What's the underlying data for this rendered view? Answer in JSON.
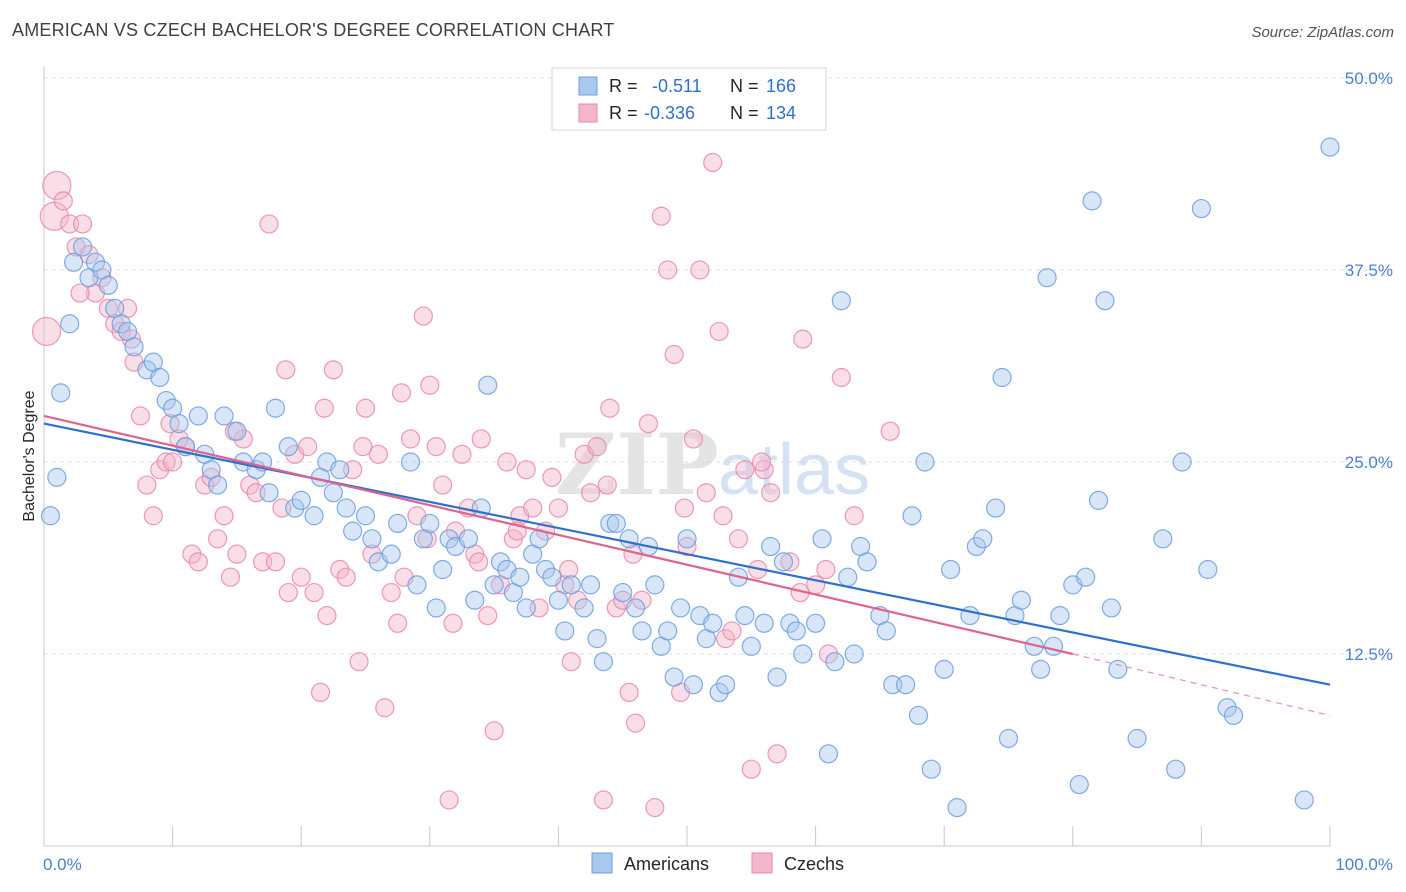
{
  "title": "AMERICAN VS CZECH BACHELOR'S DEGREE CORRELATION CHART",
  "source": "Source: ZipAtlas.com",
  "watermark": {
    "zip": "ZIP",
    "atlas": "atlas"
  },
  "colors": {
    "blue_fill": "#a9c8ee",
    "blue_stroke": "#6a9ee0",
    "blue_line": "#2f6fd0",
    "pink_fill": "#f4b6c9",
    "pink_stroke": "#e888a6",
    "pink_line": "#e0628e",
    "grid": "#dcdcdc",
    "tick_text": "#4a7fd4",
    "axis_text": "#27272a"
  },
  "legend": [
    {
      "r_label": "R =",
      "r_value": "-0.511",
      "n_label": "N =",
      "n_value": "166",
      "color": "blue"
    },
    {
      "r_label": "R =",
      "r_value": "-0.336",
      "n_label": "N =",
      "n_value": "134",
      "color": "pink"
    }
  ],
  "bottom_legend": [
    "Americans",
    "Czechs"
  ],
  "chart_data": {
    "type": "scatter",
    "title": "AMERICAN VS CZECH BACHELOR'S DEGREE CORRELATION CHART",
    "xlabel": "",
    "ylabel": "Bachelor's Degree",
    "xlim": [
      0,
      100
    ],
    "ylim": [
      0,
      50
    ],
    "x_tick_labels": [
      "0.0%",
      "100.0%"
    ],
    "y_ticks": [
      12.5,
      25.0,
      37.5,
      50.0
    ],
    "y_tick_labels": [
      "12.5%",
      "25.0%",
      "37.5%",
      "50.0%"
    ],
    "grid": true,
    "legend_position": "top-center",
    "series": [
      {
        "name": "Americans",
        "r": -0.511,
        "n": 166,
        "trend": {
          "x": [
            0,
            100
          ],
          "y": [
            27.5,
            10.5
          ]
        },
        "points": [
          [
            0.5,
            21.5
          ],
          [
            1.0,
            24.0
          ],
          [
            1.3,
            29.5
          ],
          [
            2.0,
            34.0
          ],
          [
            2.3,
            38.0
          ],
          [
            3.0,
            39.0
          ],
          [
            3.5,
            37.0
          ],
          [
            4.0,
            38.0
          ],
          [
            4.5,
            37.5
          ],
          [
            5.0,
            36.5
          ],
          [
            5.5,
            35.0
          ],
          [
            6.0,
            34.0
          ],
          [
            6.5,
            33.5
          ],
          [
            7.0,
            32.5
          ],
          [
            8.0,
            31.0
          ],
          [
            8.5,
            31.5
          ],
          [
            9.0,
            30.5
          ],
          [
            9.5,
            29.0
          ],
          [
            10.0,
            28.5
          ],
          [
            10.5,
            27.5
          ],
          [
            11.0,
            26.0
          ],
          [
            12.0,
            28.0
          ],
          [
            12.5,
            25.5
          ],
          [
            13.0,
            24.5
          ],
          [
            13.5,
            23.5
          ],
          [
            14.0,
            28.0
          ],
          [
            15.0,
            27.0
          ],
          [
            15.5,
            25.0
          ],
          [
            16.5,
            24.5
          ],
          [
            17.0,
            25.0
          ],
          [
            17.5,
            23.0
          ],
          [
            18.0,
            28.5
          ],
          [
            19.0,
            26.0
          ],
          [
            19.5,
            22.0
          ],
          [
            20.0,
            22.5
          ],
          [
            21.0,
            21.5
          ],
          [
            21.5,
            24.0
          ],
          [
            22.0,
            25.0
          ],
          [
            22.5,
            23.0
          ],
          [
            23.0,
            24.5
          ],
          [
            23.5,
            22.0
          ],
          [
            24.0,
            20.5
          ],
          [
            25.0,
            21.5
          ],
          [
            25.5,
            20.0
          ],
          [
            26.0,
            18.5
          ],
          [
            27.0,
            19.0
          ],
          [
            27.5,
            21.0
          ],
          [
            28.5,
            25.0
          ],
          [
            29.0,
            17.0
          ],
          [
            29.5,
            20.0
          ],
          [
            30.0,
            21.0
          ],
          [
            30.5,
            15.5
          ],
          [
            31.0,
            18.0
          ],
          [
            31.5,
            20.0
          ],
          [
            32.0,
            19.5
          ],
          [
            33.0,
            20.0
          ],
          [
            33.5,
            16.0
          ],
          [
            34.0,
            22.0
          ],
          [
            34.5,
            30.0
          ],
          [
            35.0,
            17.0
          ],
          [
            35.5,
            18.5
          ],
          [
            36.0,
            18.0
          ],
          [
            36.5,
            16.5
          ],
          [
            37.0,
            17.5
          ],
          [
            37.5,
            15.5
          ],
          [
            38.0,
            19.0
          ],
          [
            38.5,
            20.0
          ],
          [
            39.0,
            18.0
          ],
          [
            39.5,
            17.5
          ],
          [
            40.0,
            16.0
          ],
          [
            40.5,
            14.0
          ],
          [
            41.0,
            17.0
          ],
          [
            42.0,
            15.5
          ],
          [
            42.5,
            17.0
          ],
          [
            43.0,
            13.5
          ],
          [
            43.5,
            12.0
          ],
          [
            44.0,
            21.0
          ],
          [
            44.5,
            21.0
          ],
          [
            45.0,
            16.5
          ],
          [
            45.5,
            20.0
          ],
          [
            46.0,
            15.5
          ],
          [
            46.5,
            14.0
          ],
          [
            47.0,
            19.5
          ],
          [
            47.5,
            17.0
          ],
          [
            48.0,
            13.0
          ],
          [
            48.5,
            14.0
          ],
          [
            49.0,
            11.0
          ],
          [
            49.5,
            15.5
          ],
          [
            50.0,
            20.0
          ],
          [
            50.5,
            10.5
          ],
          [
            51.0,
            15.0
          ],
          [
            51.5,
            13.5
          ],
          [
            52.0,
            14.5
          ],
          [
            52.5,
            10.0
          ],
          [
            53.0,
            10.5
          ],
          [
            54.0,
            17.5
          ],
          [
            54.5,
            15.0
          ],
          [
            55.0,
            13.0
          ],
          [
            56.0,
            14.5
          ],
          [
            56.5,
            19.5
          ],
          [
            57.0,
            11.0
          ],
          [
            57.5,
            18.5
          ],
          [
            58.0,
            14.5
          ],
          [
            58.5,
            14.0
          ],
          [
            59.0,
            12.5
          ],
          [
            60.0,
            14.5
          ],
          [
            60.5,
            20.0
          ],
          [
            61.0,
            6.0
          ],
          [
            61.5,
            12.0
          ],
          [
            62.0,
            35.5
          ],
          [
            62.5,
            17.5
          ],
          [
            63.0,
            12.5
          ],
          [
            63.5,
            19.5
          ],
          [
            64.0,
            18.5
          ],
          [
            65.0,
            15.0
          ],
          [
            65.5,
            14.0
          ],
          [
            66.0,
            10.5
          ],
          [
            67.0,
            10.5
          ],
          [
            67.5,
            21.5
          ],
          [
            68.0,
            8.5
          ],
          [
            68.5,
            25.0
          ],
          [
            69.0,
            5.0
          ],
          [
            70.0,
            11.5
          ],
          [
            70.5,
            18.0
          ],
          [
            71.0,
            2.5
          ],
          [
            72.0,
            15.0
          ],
          [
            72.5,
            19.5
          ],
          [
            73.0,
            20.0
          ],
          [
            74.0,
            22.0
          ],
          [
            74.5,
            30.5
          ],
          [
            75.0,
            7.0
          ],
          [
            75.5,
            15.0
          ],
          [
            76.0,
            16.0
          ],
          [
            77.0,
            13.0
          ],
          [
            77.5,
            11.5
          ],
          [
            78.0,
            37.0
          ],
          [
            78.5,
            13.0
          ],
          [
            79.0,
            15.0
          ],
          [
            80.0,
            17.0
          ],
          [
            80.5,
            4.0
          ],
          [
            81.0,
            17.5
          ],
          [
            81.5,
            42.0
          ],
          [
            82.0,
            22.5
          ],
          [
            82.5,
            35.5
          ],
          [
            83.0,
            15.5
          ],
          [
            83.5,
            11.5
          ],
          [
            85.0,
            7.0
          ],
          [
            87.0,
            20.0
          ],
          [
            88.0,
            5.0
          ],
          [
            88.5,
            25.0
          ],
          [
            90.0,
            41.5
          ],
          [
            90.5,
            18.0
          ],
          [
            92.0,
            9.0
          ],
          [
            92.5,
            8.5
          ],
          [
            98.0,
            3.0
          ],
          [
            100.0,
            45.5
          ]
        ]
      },
      {
        "name": "Czechs",
        "r": -0.336,
        "n": 134,
        "trend": {
          "x": [
            0,
            80
          ],
          "y": [
            28.0,
            12.5
          ]
        },
        "trend_dashed": {
          "x": [
            80,
            100
          ],
          "y": [
            12.5,
            8.5
          ]
        },
        "points": [
          [
            0.2,
            33.5
          ],
          [
            0.8,
            41.0
          ],
          [
            1.0,
            43.0
          ],
          [
            1.5,
            42.0
          ],
          [
            2.0,
            40.5
          ],
          [
            2.5,
            39.0
          ],
          [
            3.0,
            40.5
          ],
          [
            3.5,
            38.5
          ],
          [
            4.0,
            36.0
          ],
          [
            4.5,
            37.0
          ],
          [
            5.0,
            35.0
          ],
          [
            5.5,
            34.0
          ],
          [
            6.0,
            33.5
          ],
          [
            6.5,
            35.0
          ],
          [
            7.0,
            31.5
          ],
          [
            7.5,
            28.0
          ],
          [
            8.0,
            23.5
          ],
          [
            8.5,
            21.5
          ],
          [
            9.0,
            24.5
          ],
          [
            9.5,
            25.0
          ],
          [
            10.0,
            25.0
          ],
          [
            10.5,
            26.5
          ],
          [
            11.0,
            26.0
          ],
          [
            11.5,
            19.0
          ],
          [
            12.0,
            18.5
          ],
          [
            12.5,
            23.5
          ],
          [
            13.0,
            24.0
          ],
          [
            13.5,
            20.0
          ],
          [
            14.0,
            21.5
          ],
          [
            14.5,
            17.5
          ],
          [
            15.0,
            19.0
          ],
          [
            15.5,
            26.5
          ],
          [
            16.0,
            23.5
          ],
          [
            16.5,
            23.0
          ],
          [
            17.0,
            18.5
          ],
          [
            17.5,
            40.5
          ],
          [
            18.0,
            18.5
          ],
          [
            18.5,
            22.0
          ],
          [
            19.0,
            16.5
          ],
          [
            19.5,
            25.5
          ],
          [
            20.0,
            17.5
          ],
          [
            20.5,
            26.0
          ],
          [
            21.0,
            16.5
          ],
          [
            21.5,
            10.0
          ],
          [
            22.0,
            15.0
          ],
          [
            22.5,
            31.0
          ],
          [
            23.0,
            18.0
          ],
          [
            23.5,
            17.5
          ],
          [
            24.0,
            24.5
          ],
          [
            24.5,
            12.0
          ],
          [
            25.0,
            28.5
          ],
          [
            25.5,
            19.0
          ],
          [
            26.0,
            25.5
          ],
          [
            26.5,
            9.0
          ],
          [
            27.0,
            16.5
          ],
          [
            27.5,
            14.5
          ],
          [
            28.0,
            17.5
          ],
          [
            28.5,
            26.5
          ],
          [
            29.0,
            21.5
          ],
          [
            29.5,
            34.5
          ],
          [
            30.0,
            30.0
          ],
          [
            30.5,
            26.0
          ],
          [
            31.0,
            23.5
          ],
          [
            31.5,
            3.0
          ],
          [
            32.0,
            20.5
          ],
          [
            32.5,
            25.5
          ],
          [
            33.0,
            22.0
          ],
          [
            33.5,
            19.0
          ],
          [
            34.0,
            26.5
          ],
          [
            34.5,
            15.0
          ],
          [
            35.0,
            7.5
          ],
          [
            35.5,
            17.0
          ],
          [
            36.0,
            25.0
          ],
          [
            36.5,
            20.0
          ],
          [
            37.0,
            21.5
          ],
          [
            37.5,
            24.5
          ],
          [
            38.0,
            22.0
          ],
          [
            38.5,
            15.5
          ],
          [
            39.0,
            20.5
          ],
          [
            39.5,
            24.0
          ],
          [
            40.0,
            22.0
          ],
          [
            40.5,
            17.0
          ],
          [
            41.0,
            12.0
          ],
          [
            41.5,
            16.0
          ],
          [
            42.0,
            25.5
          ],
          [
            42.5,
            23.0
          ],
          [
            43.0,
            26.0
          ],
          [
            43.5,
            3.0
          ],
          [
            44.0,
            28.5
          ],
          [
            44.5,
            15.5
          ],
          [
            45.0,
            16.0
          ],
          [
            45.5,
            10.0
          ],
          [
            46.0,
            8.0
          ],
          [
            46.5,
            16.0
          ],
          [
            47.0,
            27.5
          ],
          [
            47.5,
            2.5
          ],
          [
            48.0,
            41.0
          ],
          [
            48.5,
            37.5
          ],
          [
            49.0,
            32.0
          ],
          [
            49.5,
            10.0
          ],
          [
            50.0,
            19.5
          ],
          [
            50.5,
            26.5
          ],
          [
            51.0,
            37.5
          ],
          [
            51.5,
            23.0
          ],
          [
            52.0,
            44.5
          ],
          [
            52.5,
            33.5
          ],
          [
            53.0,
            13.5
          ],
          [
            53.5,
            14.0
          ],
          [
            54.0,
            20.0
          ],
          [
            54.5,
            24.5
          ],
          [
            55.0,
            5.0
          ],
          [
            55.5,
            18.0
          ],
          [
            56.0,
            24.5
          ],
          [
            56.5,
            23.0
          ],
          [
            57.0,
            6.0
          ],
          [
            58.0,
            18.5
          ],
          [
            59.0,
            33.0
          ],
          [
            60.0,
            17.0
          ],
          [
            61.0,
            12.5
          ],
          [
            62.0,
            30.5
          ],
          [
            63.0,
            21.5
          ],
          [
            2.8,
            36.0
          ],
          [
            6.8,
            33.0
          ],
          [
            9.8,
            27.5
          ],
          [
            14.8,
            27.0
          ],
          [
            18.8,
            31.0
          ],
          [
            21.8,
            28.5
          ],
          [
            24.8,
            26.0
          ],
          [
            27.8,
            29.5
          ],
          [
            29.8,
            20.0
          ],
          [
            31.8,
            14.5
          ],
          [
            33.8,
            18.5
          ],
          [
            36.8,
            20.5
          ],
          [
            40.8,
            18.0
          ],
          [
            43.8,
            23.5
          ],
          [
            45.8,
            19.0
          ],
          [
            49.8,
            22.0
          ],
          [
            52.8,
            21.5
          ],
          [
            55.8,
            25.0
          ],
          [
            58.8,
            16.5
          ],
          [
            60.8,
            18.0
          ],
          [
            65.8,
            27.0
          ]
        ]
      }
    ]
  }
}
